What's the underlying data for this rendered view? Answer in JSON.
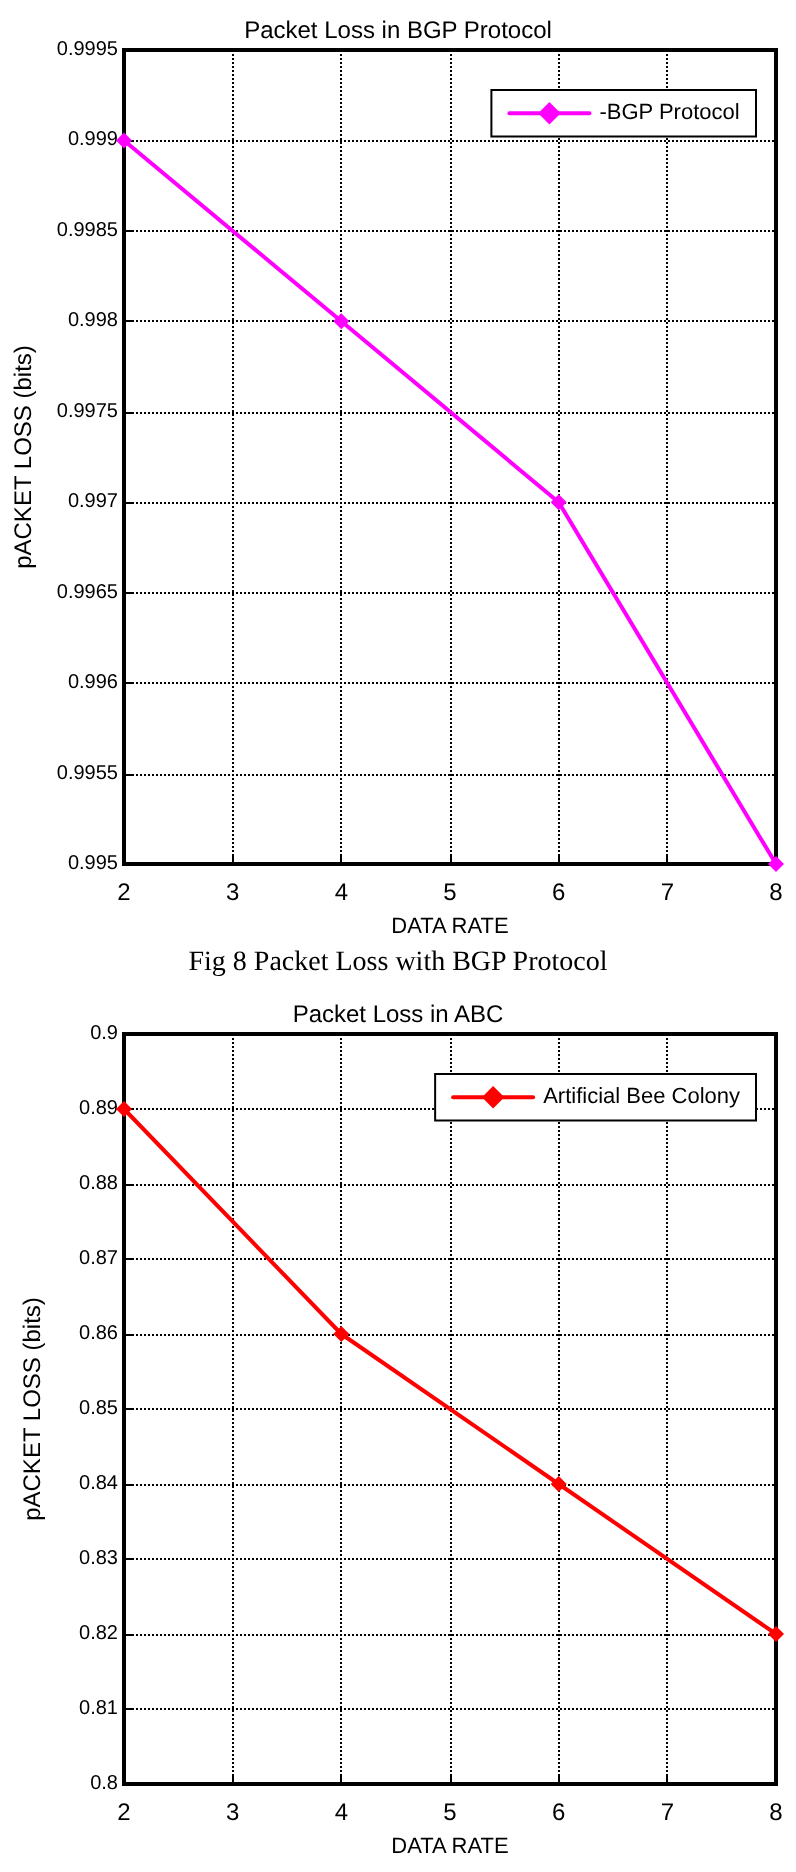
{
  "chart_data": [
    {
      "type": "line",
      "title": "Packet Loss in BGP Protocol",
      "xlabel": "DATA RATE",
      "ylabel": "pACKET LOSS (bits)",
      "x": [
        2,
        4,
        6,
        8
      ],
      "series": [
        {
          "name": "-BGP Protocol",
          "color": "#ff00ff",
          "values": [
            0.999,
            0.998,
            0.997,
            0.995
          ]
        }
      ],
      "xlim": [
        2,
        8
      ],
      "xticks": [
        2,
        3,
        4,
        5,
        6,
        7,
        8
      ],
      "ylim": [
        0.995,
        0.9995
      ],
      "yticks": [
        0.995,
        0.9955,
        0.996,
        0.9965,
        0.997,
        0.9975,
        0.998,
        0.9985,
        0.999,
        0.9995
      ],
      "grid": true,
      "legend": "top right",
      "marker": "diamond",
      "line_style": "solid",
      "annotations": [
        "Fig 8 Packet Loss with BGP Protocol"
      ]
    },
    {
      "type": "line",
      "title": "Packet Loss in ABC",
      "xlabel": "DATA RATE",
      "ylabel": "pACKET LOSS (bits)",
      "x": [
        2,
        4,
        6,
        8
      ],
      "series": [
        {
          "name": "Artificial Bee Colony",
          "color": "#ff0000",
          "values": [
            0.89,
            0.86,
            0.84,
            0.82
          ]
        }
      ],
      "xlim": [
        2,
        8
      ],
      "xticks": [
        2,
        3,
        4,
        5,
        6,
        7,
        8
      ],
      "ylim": [
        0.8,
        0.9
      ],
      "yticks": [
        0.8,
        0.81,
        0.82,
        0.83,
        0.84,
        0.85,
        0.86,
        0.87,
        0.88,
        0.89,
        0.9
      ],
      "grid": true,
      "legend": "top right",
      "marker": "diamond",
      "line_style": "solid"
    }
  ]
}
